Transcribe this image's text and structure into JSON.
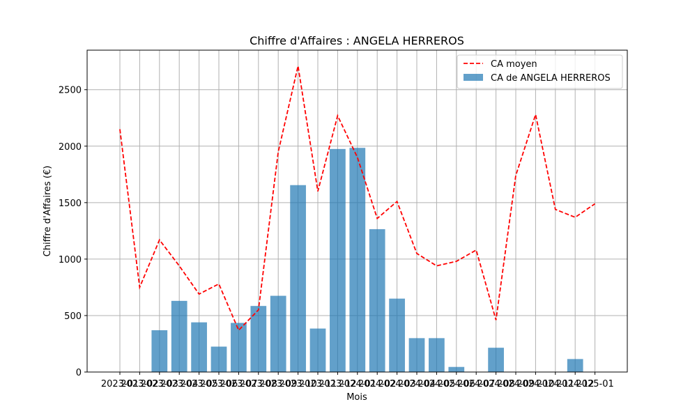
{
  "chart_data": {
    "type": "bar",
    "title": "Chiffre d'Affaires : ANGELA HERREROS",
    "xlabel": "Mois",
    "ylabel": "Chiffre d'Affaires (€)",
    "ylim": [
      0,
      2850
    ],
    "yticks": [
      0,
      500,
      1000,
      1500,
      2000,
      2500
    ],
    "grid": true,
    "legend_position": "top-right",
    "categories": [
      "2023-01",
      "2023-02",
      "2023-03",
      "2023-04",
      "2023-05",
      "2023-06",
      "2023-07",
      "2023-08",
      "2023-09",
      "2023-10",
      "2023-11",
      "2023-12",
      "2024-01",
      "2024-02",
      "2024-03",
      "2024-04",
      "2024-05",
      "2024-06",
      "2024-07",
      "2024-08",
      "2024-09",
      "2024-10",
      "2024-11",
      "2024-12",
      "2025-01"
    ],
    "series": [
      {
        "name": "CA moyen",
        "kind": "line",
        "style": "dashed",
        "color": "#ff0000",
        "values": [
          2150,
          750,
          1170,
          940,
          690,
          780,
          370,
          550,
          1950,
          2710,
          1600,
          2270,
          1900,
          1360,
          1510,
          1050,
          940,
          980,
          1080,
          460,
          1740,
          2280,
          1440,
          1370,
          1490
        ]
      },
      {
        "name": "CA de ANGELA HERREROS",
        "kind": "bar",
        "color": "#1f77b4",
        "values": [
          null,
          null,
          370,
          630,
          440,
          225,
          435,
          585,
          675,
          1655,
          385,
          1975,
          1985,
          1265,
          650,
          300,
          300,
          45,
          null,
          215,
          null,
          null,
          null,
          115,
          null
        ]
      }
    ]
  }
}
